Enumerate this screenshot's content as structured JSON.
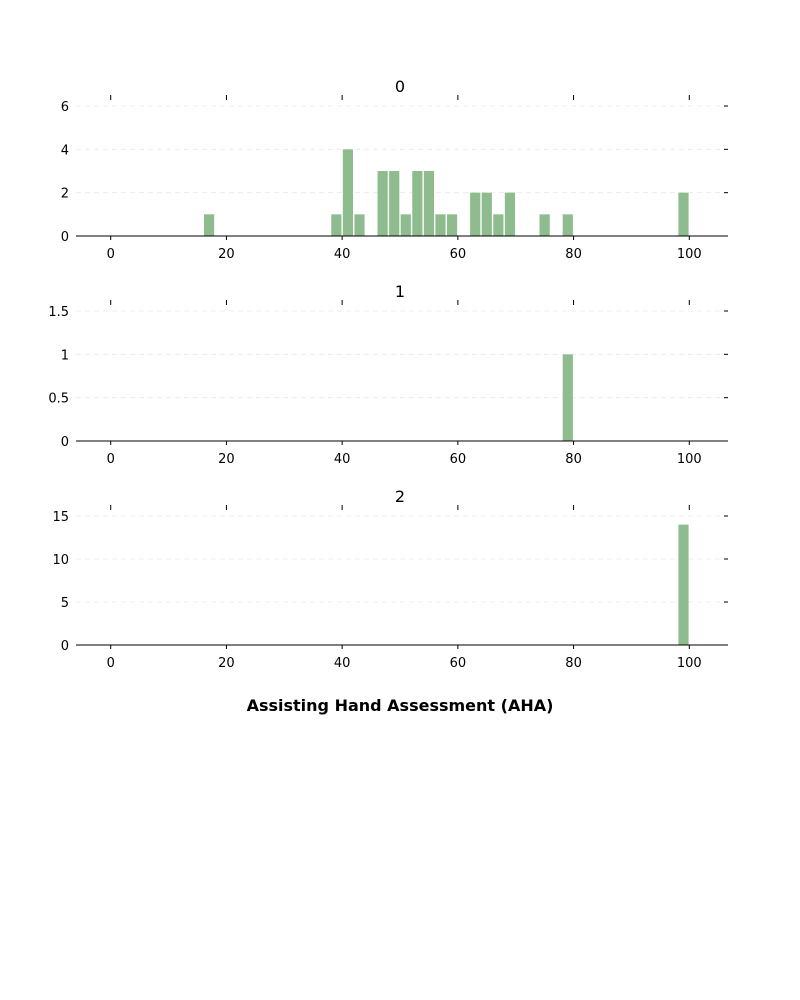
{
  "chart_data": {
    "type": "bar",
    "xlabel": "Assisting Hand Assessment (AHA)",
    "bar_color": "#8fbc8f",
    "bin_width": 2,
    "xlim": [
      -6,
      106
    ],
    "xticks": [
      0,
      20,
      40,
      60,
      80,
      100
    ],
    "grid": "horizontal dashed",
    "panels": [
      {
        "title": "0",
        "ylim": [
          0,
          6
        ],
        "yticks": [
          0,
          2,
          4,
          6
        ],
        "ytick_labels": [
          "0",
          "2",
          "4",
          "6"
        ],
        "bins": [
          16,
          38,
          40,
          42,
          46,
          48,
          50,
          52,
          54,
          56,
          58,
          62,
          64,
          66,
          68,
          74,
          78,
          98
        ],
        "counts": [
          1,
          1,
          4,
          1,
          3,
          3,
          1,
          3,
          3,
          1,
          1,
          2,
          2,
          1,
          2,
          1,
          1,
          2
        ]
      },
      {
        "title": "1",
        "ylim": [
          0,
          1.5
        ],
        "yticks": [
          0,
          0.5,
          1,
          1.5
        ],
        "ytick_labels": [
          "0",
          "0.5",
          "1",
          "1.5"
        ],
        "bins": [
          78
        ],
        "counts": [
          1
        ]
      },
      {
        "title": "2",
        "ylim": [
          0,
          15
        ],
        "yticks": [
          0,
          5,
          10,
          15
        ],
        "ytick_labels": [
          "0",
          "5",
          "10",
          "15"
        ],
        "bins": [
          98
        ],
        "counts": [
          14
        ]
      }
    ]
  }
}
